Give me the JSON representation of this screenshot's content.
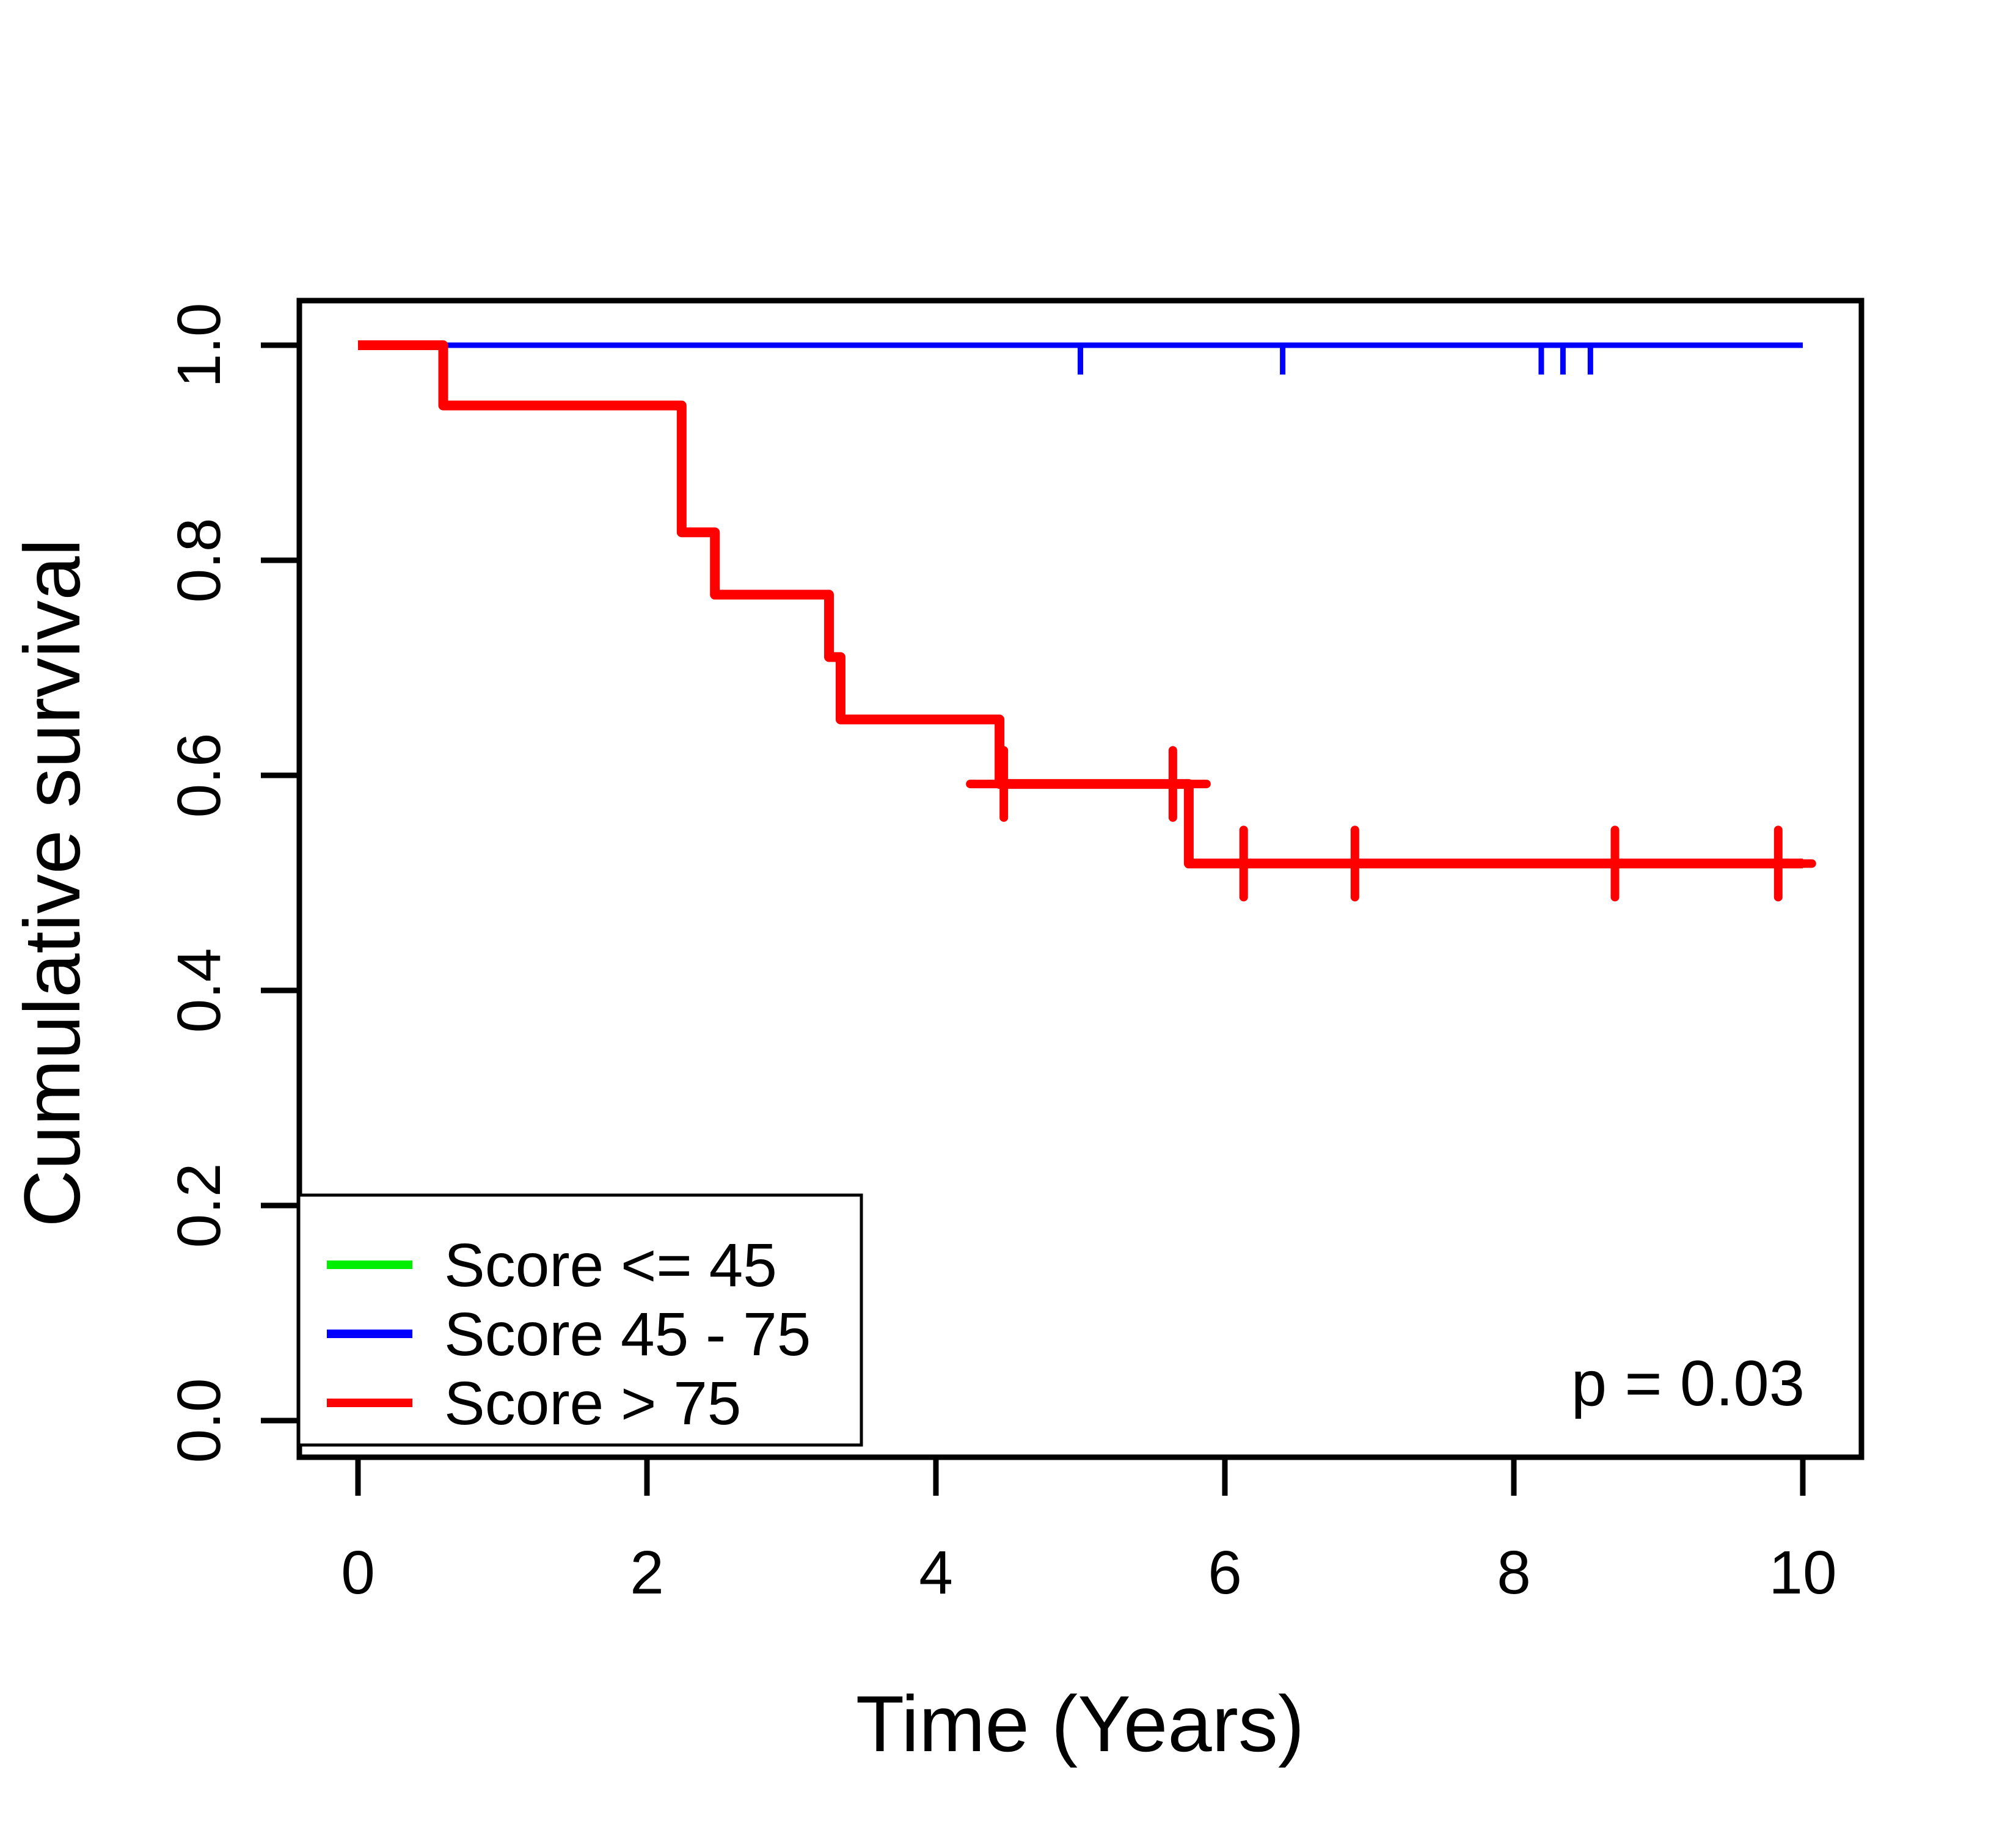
{
  "figure": {
    "annotation_p_value": "p = 0.03"
  },
  "chart_data": {
    "type": "line",
    "subtype": "kaplan-meier-step-plot",
    "title": "",
    "xlabel": "Time (Years)",
    "ylabel": "Cumulative survival",
    "xlim": [
      0,
      10
    ],
    "ylim": [
      0.0,
      1.0
    ],
    "x_ticks": [
      "0",
      "2",
      "4",
      "6",
      "8",
      "10"
    ],
    "y_ticks": [
      "0.0",
      "0.2",
      "0.4",
      "0.6",
      "0.8",
      "1.0"
    ],
    "grid": false,
    "legend_position": "bottom-left",
    "annotation": "p = 0.03",
    "frame_color": "#000000",
    "background_color": "#ffffff",
    "series": [
      {
        "name": "Score <= 45",
        "color": "#00EE00",
        "line_width": 9,
        "censor_style": "none",
        "steps": [
          [
            0,
            1.0
          ],
          [
            10,
            1.0
          ]
        ],
        "censors": []
      },
      {
        "name": "Score 45 - 75",
        "color": "#0000FF",
        "line_width": 9,
        "censor_style": "tick-down",
        "steps": [
          [
            0,
            1.0
          ],
          [
            10,
            1.0
          ]
        ],
        "censors": [
          [
            5.0,
            1.0
          ],
          [
            6.4,
            1.0
          ],
          [
            8.19,
            1.0
          ],
          [
            8.34,
            1.0
          ],
          [
            8.53,
            1.0
          ]
        ]
      },
      {
        "name": "Score > 75",
        "color": "#FF0000",
        "line_width": 16,
        "censor_style": "plus",
        "steps": [
          [
            0,
            1.0
          ],
          [
            0.59,
            1.0
          ],
          [
            0.59,
            0.944
          ],
          [
            2.24,
            0.944
          ],
          [
            2.24,
            0.826
          ],
          [
            2.47,
            0.826
          ],
          [
            2.47,
            0.768
          ],
          [
            3.26,
            0.768
          ],
          [
            3.26,
            0.71
          ],
          [
            3.34,
            0.71
          ],
          [
            3.34,
            0.652
          ],
          [
            4.44,
            0.652
          ],
          [
            4.44,
            0.592
          ],
          [
            5.75,
            0.592
          ],
          [
            5.75,
            0.518
          ],
          [
            10,
            0.518
          ]
        ],
        "censors": [
          [
            4.47,
            0.592
          ],
          [
            5.64,
            0.592
          ],
          [
            6.13,
            0.518
          ],
          [
            6.9,
            0.518
          ],
          [
            8.7,
            0.518
          ],
          [
            9.83,
            0.518
          ]
        ]
      }
    ]
  }
}
